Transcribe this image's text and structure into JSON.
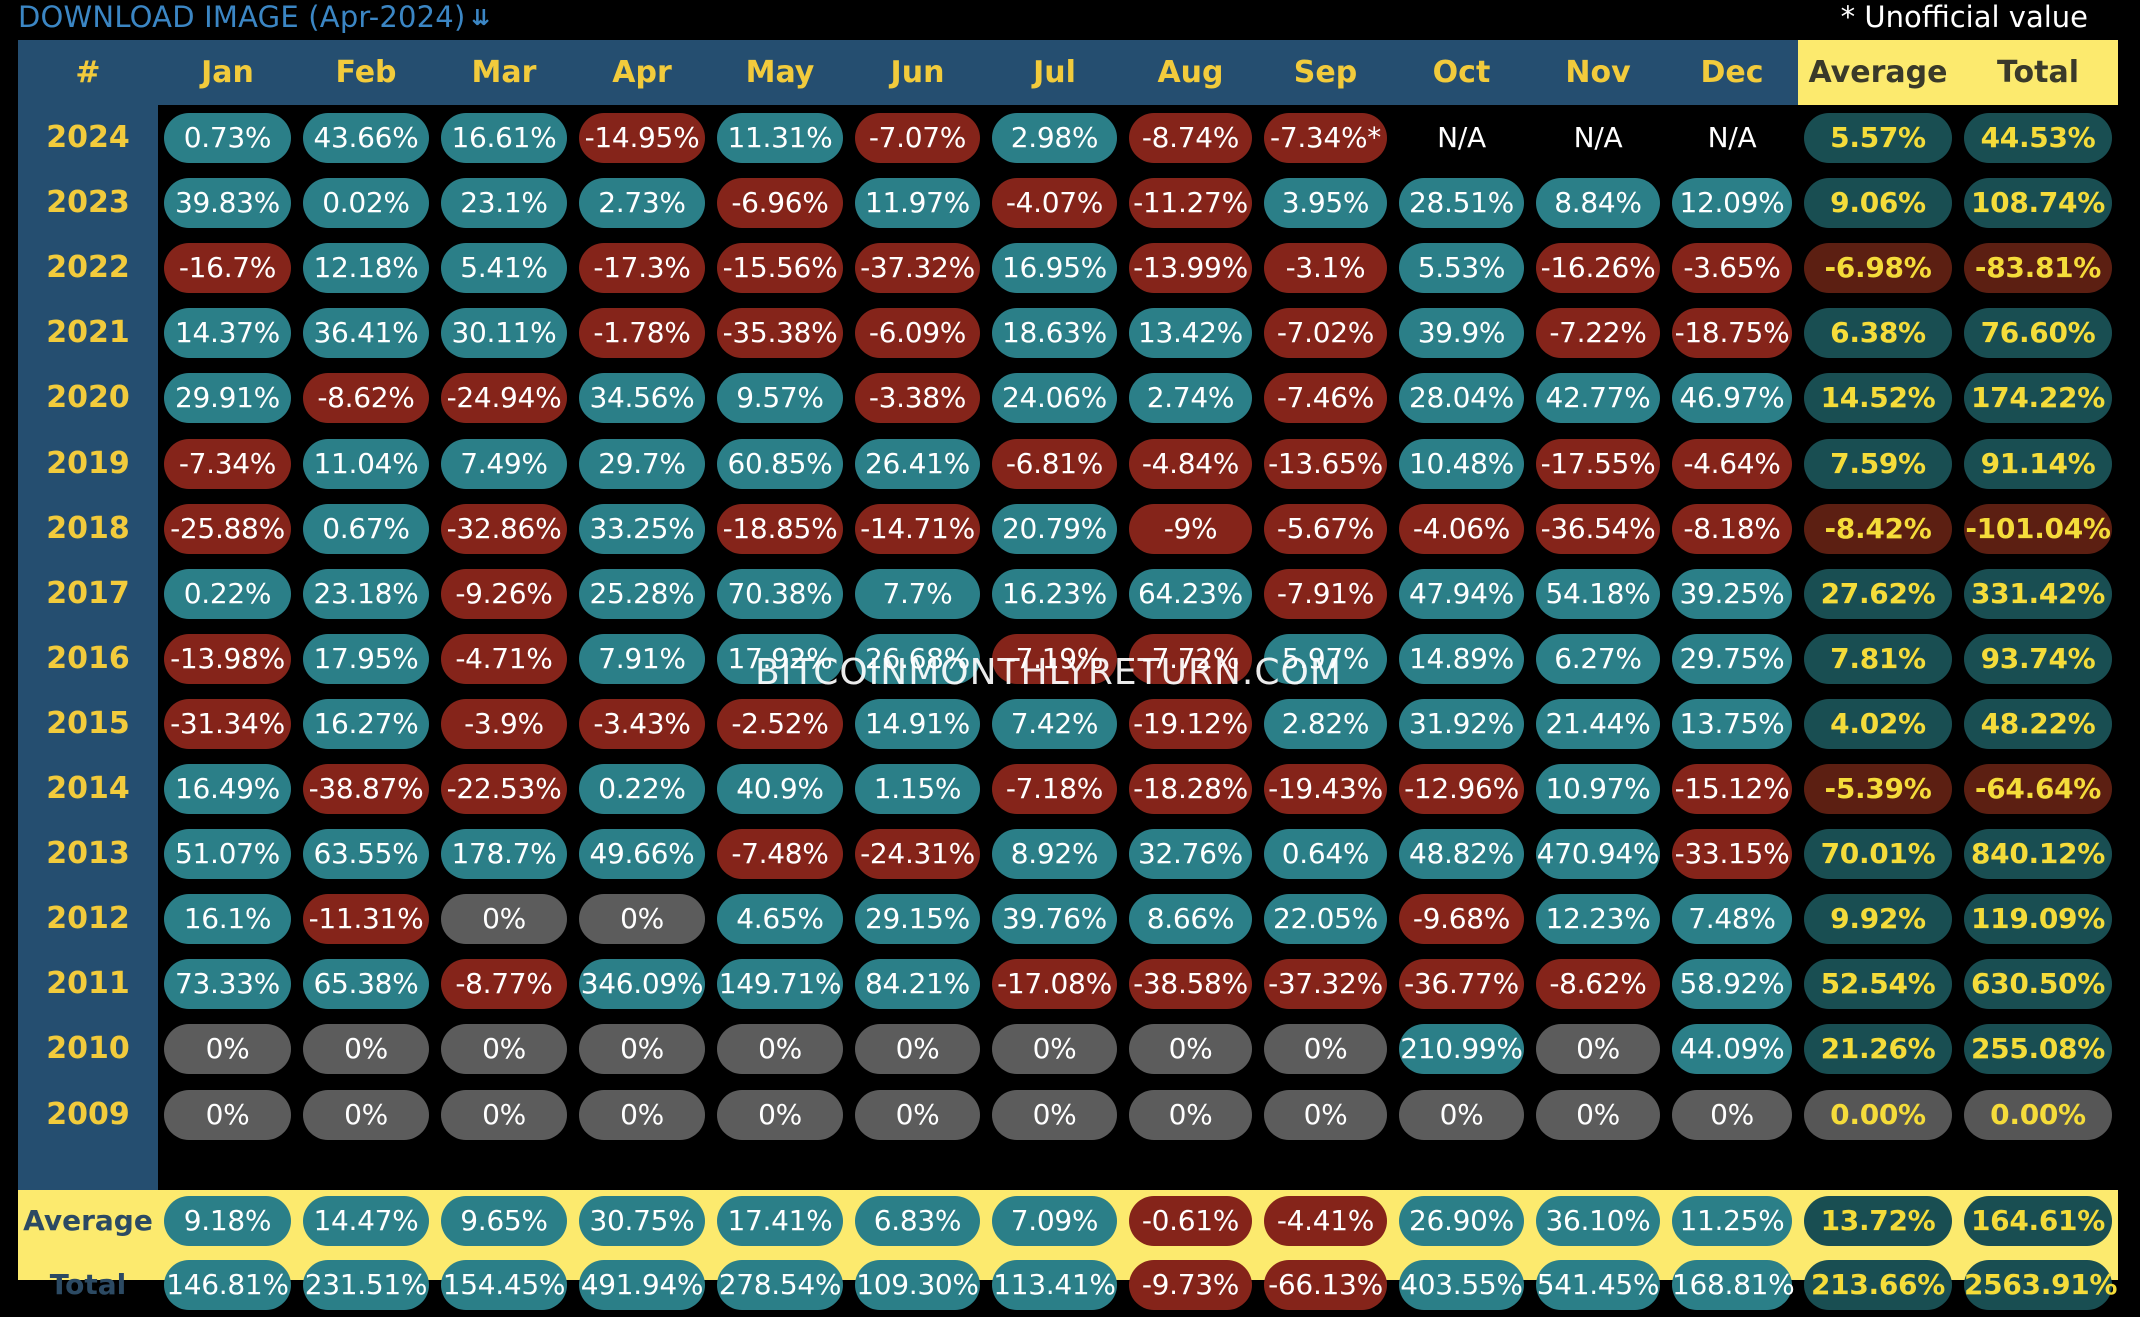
{
  "download": {
    "label": "DOWNLOAD IMAGE (Apr-2024)",
    "icon": "double-chevron-down-icon"
  },
  "note": "* Unofficial value",
  "watermark": "BITCOINMONTHLYRETURN.COM",
  "colors": {
    "positive": "#2b7f88",
    "negative": "#85241a",
    "zero": "#5c5c5c",
    "header_bg": "#254e70",
    "summary_bg": "#fcea6e",
    "label_yellow": "#f2cb3c"
  },
  "headers": [
    "#",
    "Jan",
    "Feb",
    "Mar",
    "Apr",
    "May",
    "Jun",
    "Jul",
    "Aug",
    "Sep",
    "Oct",
    "Nov",
    "Dec",
    "Average",
    "Total"
  ],
  "rows": [
    {
      "year": "2024",
      "months": [
        "0.73%",
        "43.66%",
        "16.61%",
        "-14.95%",
        "11.31%",
        "-7.07%",
        "2.98%",
        "-8.74%",
        "-7.34%*",
        "N/A",
        "N/A",
        "N/A"
      ],
      "average": "5.57%",
      "total": "44.53%"
    },
    {
      "year": "2023",
      "months": [
        "39.83%",
        "0.02%",
        "23.1%",
        "2.73%",
        "-6.96%",
        "11.97%",
        "-4.07%",
        "-11.27%",
        "3.95%",
        "28.51%",
        "8.84%",
        "12.09%"
      ],
      "average": "9.06%",
      "total": "108.74%"
    },
    {
      "year": "2022",
      "months": [
        "-16.7%",
        "12.18%",
        "5.41%",
        "-17.3%",
        "-15.56%",
        "-37.32%",
        "16.95%",
        "-13.99%",
        "-3.1%",
        "5.53%",
        "-16.26%",
        "-3.65%"
      ],
      "average": "-6.98%",
      "total": "-83.81%"
    },
    {
      "year": "2021",
      "months": [
        "14.37%",
        "36.41%",
        "30.11%",
        "-1.78%",
        "-35.38%",
        "-6.09%",
        "18.63%",
        "13.42%",
        "-7.02%",
        "39.9%",
        "-7.22%",
        "-18.75%"
      ],
      "average": "6.38%",
      "total": "76.60%"
    },
    {
      "year": "2020",
      "months": [
        "29.91%",
        "-8.62%",
        "-24.94%",
        "34.56%",
        "9.57%",
        "-3.38%",
        "24.06%",
        "2.74%",
        "-7.46%",
        "28.04%",
        "42.77%",
        "46.97%"
      ],
      "average": "14.52%",
      "total": "174.22%"
    },
    {
      "year": "2019",
      "months": [
        "-7.34%",
        "11.04%",
        "7.49%",
        "29.7%",
        "60.85%",
        "26.41%",
        "-6.81%",
        "-4.84%",
        "-13.65%",
        "10.48%",
        "-17.55%",
        "-4.64%"
      ],
      "average": "7.59%",
      "total": "91.14%"
    },
    {
      "year": "2018",
      "months": [
        "-25.88%",
        "0.67%",
        "-32.86%",
        "33.25%",
        "-18.85%",
        "-14.71%",
        "20.79%",
        "-9%",
        "-5.67%",
        "-4.06%",
        "-36.54%",
        "-8.18%"
      ],
      "average": "-8.42%",
      "total": "-101.04%"
    },
    {
      "year": "2017",
      "months": [
        "0.22%",
        "23.18%",
        "-9.26%",
        "25.28%",
        "70.38%",
        "7.7%",
        "16.23%",
        "64.23%",
        "-7.91%",
        "47.94%",
        "54.18%",
        "39.25%"
      ],
      "average": "27.62%",
      "total": "331.42%"
    },
    {
      "year": "2016",
      "months": [
        "-13.98%",
        "17.95%",
        "-4.71%",
        "7.91%",
        "17.92%",
        "26.68%",
        "-7.19%",
        "-7.72%",
        "5.97%",
        "14.89%",
        "6.27%",
        "29.75%"
      ],
      "average": "7.81%",
      "total": "93.74%"
    },
    {
      "year": "2015",
      "months": [
        "-31.34%",
        "16.27%",
        "-3.9%",
        "-3.43%",
        "-2.52%",
        "14.91%",
        "7.42%",
        "-19.12%",
        "2.82%",
        "31.92%",
        "21.44%",
        "13.75%"
      ],
      "average": "4.02%",
      "total": "48.22%"
    },
    {
      "year": "2014",
      "months": [
        "16.49%",
        "-38.87%",
        "-22.53%",
        "0.22%",
        "40.9%",
        "1.15%",
        "-7.18%",
        "-18.28%",
        "-19.43%",
        "-12.96%",
        "10.97%",
        "-15.12%"
      ],
      "average": "-5.39%",
      "total": "-64.64%"
    },
    {
      "year": "2013",
      "months": [
        "51.07%",
        "63.55%",
        "178.7%",
        "49.66%",
        "-7.48%",
        "-24.31%",
        "8.92%",
        "32.76%",
        "0.64%",
        "48.82%",
        "470.94%",
        "-33.15%"
      ],
      "average": "70.01%",
      "total": "840.12%"
    },
    {
      "year": "2012",
      "months": [
        "16.1%",
        "-11.31%",
        "0%",
        "0%",
        "4.65%",
        "29.15%",
        "39.76%",
        "8.66%",
        "22.05%",
        "-9.68%",
        "12.23%",
        "7.48%"
      ],
      "average": "9.92%",
      "total": "119.09%"
    },
    {
      "year": "2011",
      "months": [
        "73.33%",
        "65.38%",
        "-8.77%",
        "346.09%",
        "149.71%",
        "84.21%",
        "-17.08%",
        "-38.58%",
        "-37.32%",
        "-36.77%",
        "-8.62%",
        "58.92%"
      ],
      "average": "52.54%",
      "total": "630.50%"
    },
    {
      "year": "2010",
      "months": [
        "0%",
        "0%",
        "0%",
        "0%",
        "0%",
        "0%",
        "0%",
        "0%",
        "0%",
        "210.99%",
        "0%",
        "44.09%"
      ],
      "average": "21.26%",
      "total": "255.08%"
    },
    {
      "year": "2009",
      "months": [
        "0%",
        "0%",
        "0%",
        "0%",
        "0%",
        "0%",
        "0%",
        "0%",
        "0%",
        "0%",
        "0%",
        "0%"
      ],
      "average": "0.00%",
      "total": "0.00%"
    }
  ],
  "footer": [
    {
      "label": "Average",
      "months": [
        "9.18%",
        "14.47%",
        "9.65%",
        "30.75%",
        "17.41%",
        "6.83%",
        "7.09%",
        "-0.61%",
        "-4.41%",
        "26.90%",
        "36.10%",
        "11.25%"
      ],
      "average": "13.72%",
      "total": "164.61%"
    },
    {
      "label": "Total",
      "months": [
        "146.81%",
        "231.51%",
        "154.45%",
        "491.94%",
        "278.54%",
        "109.30%",
        "113.41%",
        "-9.73%",
        "-66.13%",
        "403.55%",
        "541.45%",
        "168.81%"
      ],
      "average": "213.66%",
      "total": "2563.91%"
    }
  ]
}
